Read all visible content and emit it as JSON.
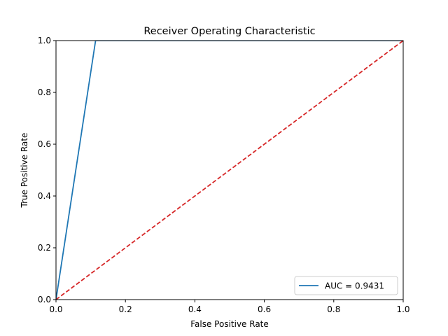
{
  "chart_data": {
    "type": "line",
    "title": "Receiver Operating Characteristic",
    "xlabel": "False Positive Rate",
    "ylabel": "True Positive Rate",
    "xlim": [
      0,
      1
    ],
    "ylim": [
      0,
      1
    ],
    "xticks": [
      0.0,
      0.2,
      0.4,
      0.6,
      0.8,
      1.0
    ],
    "yticks": [
      0.0,
      0.2,
      0.4,
      0.6,
      0.8,
      1.0
    ],
    "xtick_labels": [
      "0.0",
      "0.2",
      "0.4",
      "0.6",
      "0.8",
      "1.0"
    ],
    "ytick_labels": [
      "0.0",
      "0.2",
      "0.4",
      "0.6",
      "0.8",
      "1.0"
    ],
    "grid": false,
    "legend_position": "lower-right",
    "series": [
      {
        "name": "AUC = 0.9431",
        "color": "#1f77b4",
        "style": "solid",
        "x": [
          0.0,
          0.114,
          1.0
        ],
        "y": [
          0.0,
          1.0,
          1.0
        ]
      },
      {
        "color": "#d62728",
        "style": "dashed",
        "x": [
          0.0,
          1.0
        ],
        "y": [
          0.0,
          1.0
        ]
      }
    ]
  }
}
